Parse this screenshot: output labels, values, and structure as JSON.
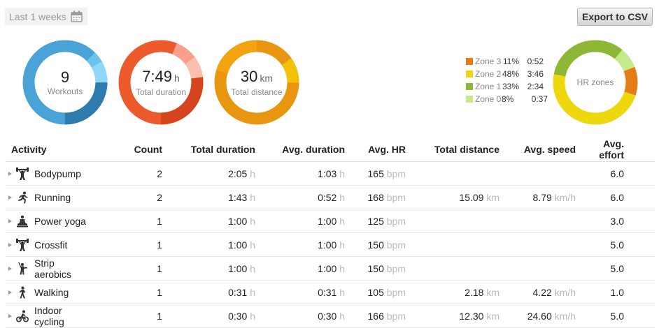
{
  "header": {
    "period_label": "Last 1 weeks",
    "export_label": "Export to CSV"
  },
  "summary": {
    "workouts": {
      "value": "9",
      "label": "Workouts"
    },
    "duration": {
      "value": "7:49",
      "unit": "h",
      "label": "Total duration"
    },
    "distance": {
      "value": "30",
      "unit": "km",
      "label": "Total distance"
    }
  },
  "hr_zones": {
    "label": "HR zones",
    "zones": [
      {
        "name": "Zone 3",
        "pct": "11%",
        "time": "0:52",
        "color": "#e47d13"
      },
      {
        "name": "Zone 2",
        "pct": "48%",
        "time": "3:46",
        "color": "#ecd80c"
      },
      {
        "name": "Zone 1",
        "pct": "33%",
        "time": "2:34",
        "color": "#8db735"
      },
      {
        "name": "Zone 0",
        "pct": "8%",
        "time": "0:37",
        "color": "#c5ea8c"
      }
    ]
  },
  "table": {
    "headers": [
      "Activity",
      "Count",
      "Total duration",
      "Avg. duration",
      "Avg. HR",
      "Total distance",
      "Avg. speed",
      "Avg. effort"
    ],
    "rows": [
      {
        "icon": "weightlifting-icon",
        "activity": "Bodypump",
        "count": "2",
        "total_duration": "2:05",
        "total_duration_unit": "h",
        "avg_duration": "1:03",
        "avg_duration_unit": "h",
        "avg_hr": "165",
        "avg_hr_unit": "bpm",
        "total_distance": "",
        "total_distance_unit": "",
        "avg_speed": "",
        "avg_speed_unit": "",
        "avg_effort": "6.0"
      },
      {
        "icon": "running-icon",
        "activity": "Running",
        "count": "2",
        "total_duration": "1:43",
        "total_duration_unit": "h",
        "avg_duration": "0:52",
        "avg_duration_unit": "h",
        "avg_hr": "168",
        "avg_hr_unit": "bpm",
        "total_distance": "15.09",
        "total_distance_unit": "km",
        "avg_speed": "8.79",
        "avg_speed_unit": "km/h",
        "avg_effort": "6.0"
      },
      {
        "icon": "yoga-icon",
        "activity": "Power yoga",
        "count": "1",
        "total_duration": "1:00",
        "total_duration_unit": "h",
        "avg_duration": "1:00",
        "avg_duration_unit": "h",
        "avg_hr": "125",
        "avg_hr_unit": "bpm",
        "total_distance": "",
        "total_distance_unit": "",
        "avg_speed": "",
        "avg_speed_unit": "",
        "avg_effort": "3.0"
      },
      {
        "icon": "weightlifting-icon",
        "activity": "Crossfit",
        "count": "1",
        "total_duration": "1:00",
        "total_duration_unit": "h",
        "avg_duration": "1:00",
        "avg_duration_unit": "h",
        "avg_hr": "150",
        "avg_hr_unit": "bpm",
        "total_distance": "",
        "total_distance_unit": "",
        "avg_speed": "",
        "avg_speed_unit": "",
        "avg_effort": "5.0"
      },
      {
        "icon": "aerobics-icon",
        "activity": "Strip aerobics",
        "count": "1",
        "total_duration": "1:00",
        "total_duration_unit": "h",
        "avg_duration": "1:00",
        "avg_duration_unit": "h",
        "avg_hr": "150",
        "avg_hr_unit": "bpm",
        "total_distance": "",
        "total_distance_unit": "",
        "avg_speed": "",
        "avg_speed_unit": "",
        "avg_effort": "5.0"
      },
      {
        "icon": "walking-icon",
        "activity": "Walking",
        "count": "1",
        "total_duration": "0:31",
        "total_duration_unit": "h",
        "avg_duration": "0:31",
        "avg_duration_unit": "h",
        "avg_hr": "105",
        "avg_hr_unit": "bpm",
        "total_distance": "2.18",
        "total_distance_unit": "km",
        "avg_speed": "4.22",
        "avg_speed_unit": "km/h",
        "avg_effort": "1.0"
      },
      {
        "icon": "cycling-icon",
        "activity": "Indoor cycling",
        "count": "1",
        "total_duration": "0:30",
        "total_duration_unit": "h",
        "avg_duration": "0:30",
        "avg_duration_unit": "h",
        "avg_hr": "166",
        "avg_hr_unit": "bpm",
        "total_distance": "12.30",
        "total_distance_unit": "km",
        "avg_speed": "24.60",
        "avg_speed_unit": "km/h",
        "avg_effort": "5.0"
      }
    ]
  },
  "chart_data": [
    {
      "type": "pie",
      "categories": [
        "Zone 3",
        "Zone 2",
        "Zone 1",
        "Zone 0"
      ],
      "values": [
        11,
        48,
        33,
        8
      ],
      "colors": [
        "#e47d13",
        "#ecd80c",
        "#8db735",
        "#c5ea8c"
      ],
      "title": "HR zones"
    }
  ]
}
